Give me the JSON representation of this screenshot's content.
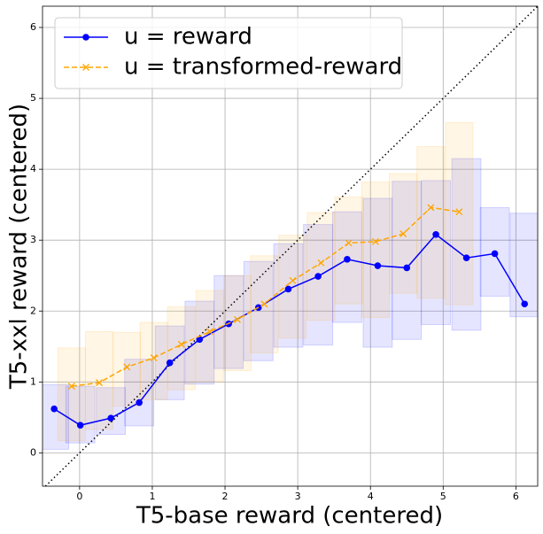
{
  "chart_data": {
    "type": "line",
    "xlabel": "T5-base reward (centered)",
    "ylabel": "T5-xxl reward (centered)",
    "xlim": [
      -0.51,
      6.3
    ],
    "ylim": [
      -0.47,
      6.3
    ],
    "xticks": [
      0,
      1,
      2,
      3,
      4,
      5,
      6
    ],
    "yticks": [
      0,
      1,
      2,
      3,
      4,
      5,
      6
    ],
    "grid": true,
    "legend": "upper left",
    "diagonal": true,
    "series": [
      {
        "name": "u = reward",
        "color": "#0000ff",
        "line_style": "solid",
        "marker": "o",
        "xerr": 0.2,
        "x": [
          -0.35,
          0.01,
          0.43,
          0.82,
          1.24,
          1.65,
          2.05,
          2.46,
          2.87,
          3.28,
          3.68,
          4.1,
          4.5,
          4.9,
          5.32,
          5.71,
          6.12
        ],
        "values": [
          0.62,
          0.39,
          0.49,
          0.71,
          1.27,
          1.6,
          1.82,
          2.05,
          2.31,
          2.49,
          2.73,
          2.64,
          2.61,
          3.08,
          2.75,
          2.81,
          2.1
        ],
        "y_low": [
          0.05,
          0.14,
          0.26,
          0.38,
          0.75,
          0.97,
          1.19,
          1.3,
          1.49,
          1.52,
          1.84,
          1.49,
          1.6,
          1.81,
          1.73,
          2.21,
          1.92
        ],
        "y_high": [
          0.96,
          0.94,
          0.92,
          1.32,
          1.79,
          2.14,
          2.5,
          2.7,
          2.95,
          3.22,
          3.4,
          3.59,
          3.83,
          3.84,
          4.15,
          3.46,
          3.38
        ]
      },
      {
        "name": "u = transformed-reward",
        "color": "#ffa500",
        "line_style": "dashed",
        "marker": "x",
        "xerr": 0.19,
        "x": [
          -0.11,
          0.27,
          0.65,
          1.02,
          1.4,
          1.79,
          2.17,
          2.54,
          2.93,
          3.32,
          3.7,
          4.07,
          4.45,
          4.83,
          5.22
        ],
        "values": [
          0.94,
          0.99,
          1.21,
          1.34,
          1.53,
          1.71,
          1.88,
          2.1,
          2.43,
          2.68,
          2.96,
          2.98,
          3.09,
          3.46,
          3.4
        ],
        "y_low": [
          0.17,
          0.33,
          0.66,
          0.75,
          0.89,
          1.0,
          1.16,
          1.41,
          1.62,
          1.87,
          2.1,
          1.91,
          2.25,
          2.18,
          2.09
        ],
        "y_high": [
          1.48,
          1.71,
          1.7,
          1.84,
          2.06,
          2.29,
          2.5,
          2.78,
          3.07,
          3.39,
          3.61,
          3.82,
          3.94,
          4.32,
          4.66
        ]
      }
    ]
  }
}
